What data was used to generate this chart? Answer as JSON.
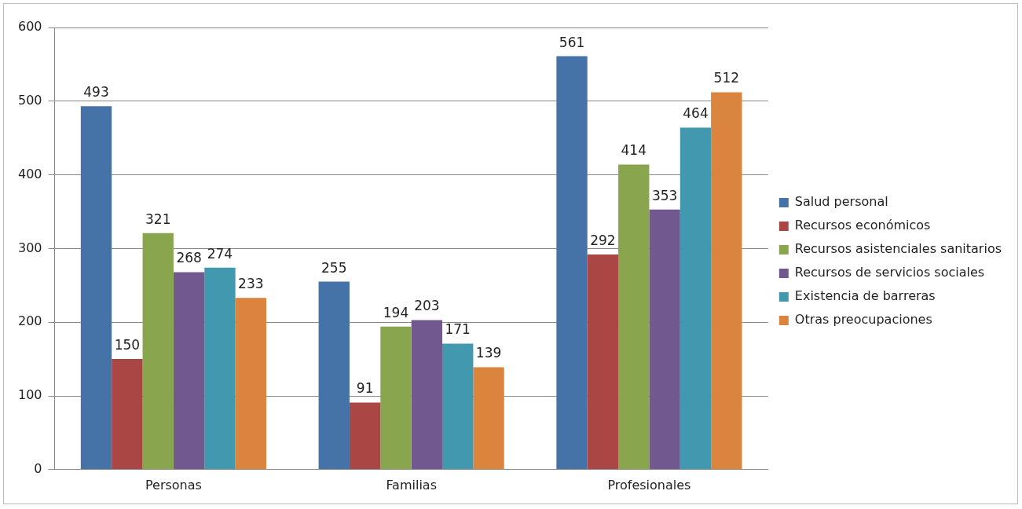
{
  "chart_data": {
    "type": "bar",
    "categories": [
      "Personas",
      "Familias",
      "Profesionales"
    ],
    "series": [
      {
        "name": "Salud personal",
        "color": "#4572a7",
        "values": [
          493,
          255,
          561
        ]
      },
      {
        "name": "Recursos económicos",
        "color": "#aa4643",
        "values": [
          150,
          91,
          292
        ]
      },
      {
        "name": "Recursos asistenciales sanitarios",
        "color": "#89a54e",
        "values": [
          321,
          194,
          414
        ]
      },
      {
        "name": "Recursos de servicios sociales",
        "color": "#71588f",
        "values": [
          268,
          203,
          353
        ]
      },
      {
        "name": "Existencia de barreras",
        "color": "#4198af",
        "values": [
          274,
          171,
          464
        ]
      },
      {
        "name": "Otras preocupaciones",
        "color": "#db843d",
        "values": [
          233,
          139,
          512
        ]
      }
    ],
    "ylim": [
      0,
      600
    ],
    "yticks": [
      0,
      100,
      200,
      300,
      400,
      500,
      600
    ],
    "grid": "y",
    "legend": "right",
    "data_labels": true
  }
}
